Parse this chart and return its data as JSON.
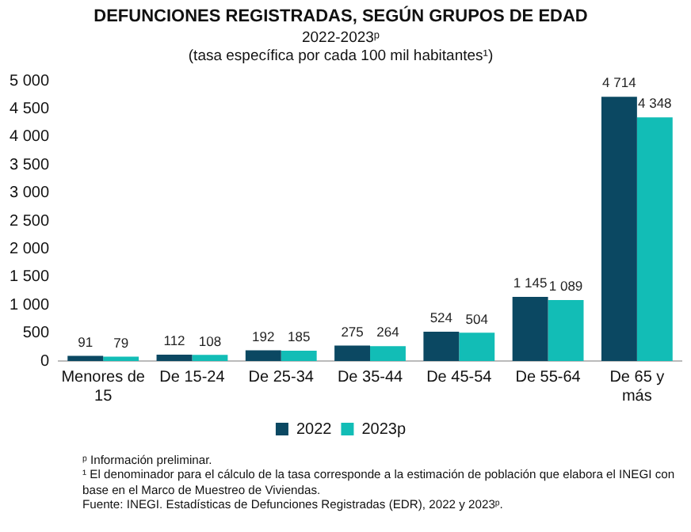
{
  "chart_data": {
    "type": "bar",
    "title": "DEFUNCIONES REGISTRADAS, SEGÚN GRUPOS DE EDAD",
    "subtitle": "2022-2023ᵖ\n(tasa específica por cada 100 mil habitantes¹)",
    "categories": [
      "Menores de 15",
      "De 15-24",
      "De 25-34",
      "De 35-44",
      "De 45-54",
      "De 55-64",
      "De 65 y más"
    ],
    "series": [
      {
        "name": "2022",
        "color": "#0b4862",
        "values": [
          91,
          112,
          192,
          275,
          524,
          1145,
          4714
        ],
        "value_labels": [
          "91",
          "112",
          "192",
          "275",
          "524",
          "1 145",
          "4 714"
        ]
      },
      {
        "name": "2023p",
        "color": "#12bdb6",
        "values": [
          79,
          108,
          185,
          264,
          504,
          1089,
          4348
        ],
        "value_labels": [
          "79",
          "108",
          "185",
          "264",
          "504",
          "1 089",
          "4 348"
        ]
      }
    ],
    "ylim": [
      0,
      5000
    ],
    "yticks": [
      {
        "value": 0,
        "label": "0"
      },
      {
        "value": 500,
        "label": "500"
      },
      {
        "value": 1000,
        "label": "1 000"
      },
      {
        "value": 1500,
        "label": "1 500"
      },
      {
        "value": 2000,
        "label": "2 000"
      },
      {
        "value": 2500,
        "label": "2 500"
      },
      {
        "value": 3000,
        "label": "3 000"
      },
      {
        "value": 3500,
        "label": "3 500"
      },
      {
        "value": 4000,
        "label": "4 000"
      },
      {
        "value": 4500,
        "label": "4 500"
      },
      {
        "value": 5000,
        "label": "5 000"
      }
    ],
    "grid": false,
    "legend": "bottom",
    "annotations": [
      "ᵖ Información preliminar.",
      "¹ El denominador para el cálculo de la tasa corresponde a la estimación de población que elabora el INEGI con base en el Marco de Muestreo de Viviendas.",
      "Fuente: INEGI. Estadísticas de Defunciones Registradas (EDR), 2022 y 2023ᵖ."
    ]
  }
}
